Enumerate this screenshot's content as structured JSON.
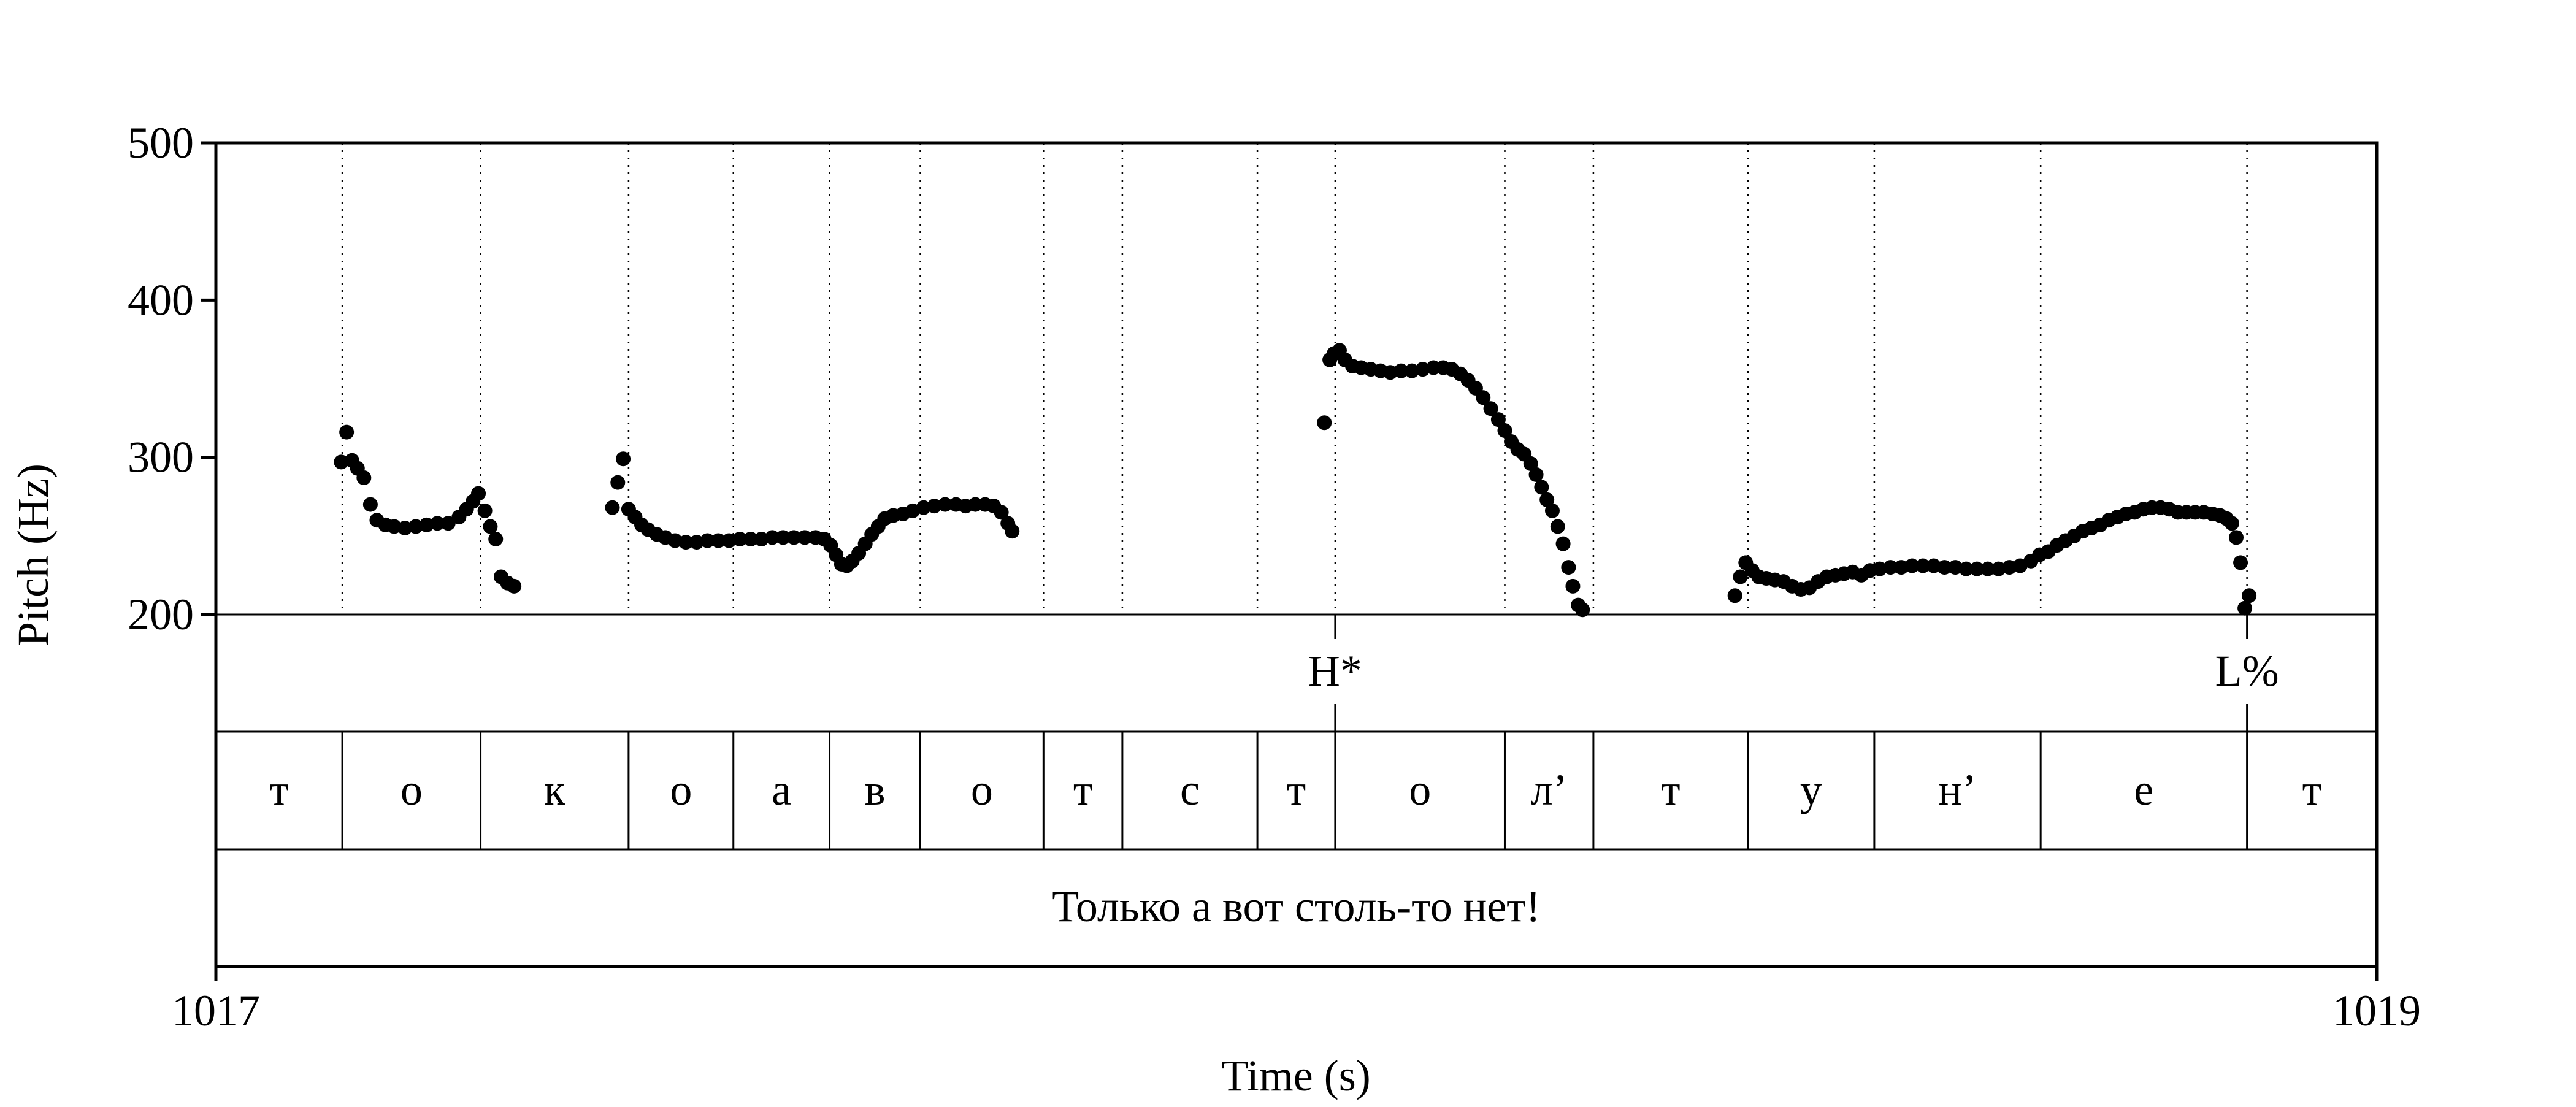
{
  "chart_data": {
    "type": "scatter",
    "xlabel": "Time (s)",
    "ylabel": "Pitch (Hz)",
    "xlim": [
      1017,
      1019
    ],
    "ylim": [
      200,
      500
    ],
    "x_ticks": [
      "1017",
      "1019"
    ],
    "y_ticks": [
      "200",
      "300",
      "400",
      "500"
    ],
    "grid": false,
    "boundaries": [
      1017.117,
      1017.245,
      1017.382,
      1017.479,
      1017.568,
      1017.652,
      1017.766,
      1017.839,
      1017.964,
      1018.036,
      1018.193,
      1018.275,
      1018.418,
      1018.535,
      1018.689,
      1018.88
    ],
    "segments": [
      "т",
      "о",
      "к",
      "о",
      "а",
      "в",
      "о",
      "т",
      "с",
      "т",
      "о",
      "л’",
      "т",
      "у",
      "н’",
      "е",
      "т"
    ],
    "tones": [
      {
        "label": "H*",
        "time": 1018.036
      },
      {
        "label": "L%",
        "time": 1018.88
      }
    ],
    "sentence": "Только а вот столь-то нет!",
    "series": [
      {
        "color": "#000000",
        "points": [
          [
            1017.116,
            297
          ],
          [
            1017.121,
            316
          ],
          [
            1017.126,
            298
          ],
          [
            1017.131,
            293
          ],
          [
            1017.137,
            287
          ],
          [
            1017.143,
            270
          ],
          [
            1017.149,
            260
          ],
          [
            1017.157,
            257
          ],
          [
            1017.165,
            256
          ],
          [
            1017.175,
            255
          ],
          [
            1017.185,
            256
          ],
          [
            1017.195,
            257
          ],
          [
            1017.205,
            258
          ],
          [
            1017.215,
            258
          ],
          [
            1017.225,
            262
          ],
          [
            1017.232,
            267
          ],
          [
            1017.238,
            272
          ],
          [
            1017.243,
            277
          ],
          [
            1017.249,
            266
          ],
          [
            1017.254,
            256
          ],
          [
            1017.259,
            248
          ],
          [
            1017.264,
            224
          ],
          [
            1017.27,
            220
          ],
          [
            1017.276,
            218
          ],
          [
            1017.367,
            268
          ],
          [
            1017.372,
            284
          ],
          [
            1017.377,
            299
          ],
          [
            1017.382,
            267
          ],
          [
            1017.388,
            262
          ],
          [
            1017.394,
            257
          ],
          [
            1017.4,
            254
          ],
          [
            1017.408,
            251
          ],
          [
            1017.416,
            249
          ],
          [
            1017.425,
            247
          ],
          [
            1017.435,
            246
          ],
          [
            1017.445,
            246
          ],
          [
            1017.455,
            247
          ],
          [
            1017.465,
            247
          ],
          [
            1017.475,
            247
          ],
          [
            1017.485,
            248
          ],
          [
            1017.495,
            248
          ],
          [
            1017.505,
            248
          ],
          [
            1017.515,
            249
          ],
          [
            1017.525,
            249
          ],
          [
            1017.535,
            249
          ],
          [
            1017.545,
            249
          ],
          [
            1017.555,
            249
          ],
          [
            1017.563,
            248
          ],
          [
            1017.569,
            244
          ],
          [
            1017.574,
            238
          ],
          [
            1017.579,
            232
          ],
          [
            1017.584,
            231
          ],
          [
            1017.589,
            234
          ],
          [
            1017.595,
            239
          ],
          [
            1017.601,
            245
          ],
          [
            1017.607,
            251
          ],
          [
            1017.613,
            256
          ],
          [
            1017.619,
            261
          ],
          [
            1017.627,
            263
          ],
          [
            1017.636,
            264
          ],
          [
            1017.645,
            266
          ],
          [
            1017.655,
            268
          ],
          [
            1017.665,
            269
          ],
          [
            1017.675,
            270
          ],
          [
            1017.685,
            270
          ],
          [
            1017.694,
            269
          ],
          [
            1017.703,
            270
          ],
          [
            1017.712,
            270
          ],
          [
            1017.72,
            269
          ],
          [
            1017.727,
            265
          ],
          [
            1017.733,
            258
          ],
          [
            1017.737,
            253
          ],
          [
            1018.026,
            322
          ],
          [
            1018.031,
            362
          ],
          [
            1018.035,
            366
          ],
          [
            1018.04,
            368
          ],
          [
            1018.045,
            362
          ],
          [
            1018.052,
            358
          ],
          [
            1018.06,
            357
          ],
          [
            1018.069,
            356
          ],
          [
            1018.078,
            355
          ],
          [
            1018.087,
            354
          ],
          [
            1018.097,
            355
          ],
          [
            1018.107,
            355
          ],
          [
            1018.117,
            356
          ],
          [
            1018.127,
            357
          ],
          [
            1018.136,
            357
          ],
          [
            1018.144,
            356
          ],
          [
            1018.152,
            353
          ],
          [
            1018.159,
            349
          ],
          [
            1018.166,
            344
          ],
          [
            1018.173,
            338
          ],
          [
            1018.18,
            331
          ],
          [
            1018.187,
            324
          ],
          [
            1018.193,
            317
          ],
          [
            1018.199,
            310
          ],
          [
            1018.205,
            305
          ],
          [
            1018.211,
            302
          ],
          [
            1018.217,
            296
          ],
          [
            1018.222,
            289
          ],
          [
            1018.227,
            281
          ],
          [
            1018.232,
            273
          ],
          [
            1018.237,
            266
          ],
          [
            1018.242,
            256
          ],
          [
            1018.247,
            245
          ],
          [
            1018.252,
            230
          ],
          [
            1018.256,
            218
          ],
          [
            1018.261,
            206
          ],
          [
            1018.265,
            203
          ],
          [
            1018.406,
            212
          ],
          [
            1018.411,
            224
          ],
          [
            1018.416,
            233
          ],
          [
            1018.422,
            228
          ],
          [
            1018.428,
            224
          ],
          [
            1018.435,
            223
          ],
          [
            1018.443,
            222
          ],
          [
            1018.451,
            221
          ],
          [
            1018.459,
            218
          ],
          [
            1018.467,
            216
          ],
          [
            1018.475,
            217
          ],
          [
            1018.483,
            221
          ],
          [
            1018.491,
            224
          ],
          [
            1018.499,
            225
          ],
          [
            1018.507,
            226
          ],
          [
            1018.515,
            227
          ],
          [
            1018.523,
            225
          ],
          [
            1018.531,
            228
          ],
          [
            1018.54,
            229
          ],
          [
            1018.55,
            230
          ],
          [
            1018.56,
            230
          ],
          [
            1018.57,
            231
          ],
          [
            1018.58,
            231
          ],
          [
            1018.59,
            231
          ],
          [
            1018.6,
            230
          ],
          [
            1018.61,
            230
          ],
          [
            1018.62,
            229
          ],
          [
            1018.63,
            229
          ],
          [
            1018.64,
            229
          ],
          [
            1018.65,
            229
          ],
          [
            1018.66,
            230
          ],
          [
            1018.67,
            231
          ],
          [
            1018.68,
            234
          ],
          [
            1018.688,
            238
          ],
          [
            1018.696,
            240
          ],
          [
            1018.704,
            244
          ],
          [
            1018.712,
            247
          ],
          [
            1018.72,
            250
          ],
          [
            1018.728,
            253
          ],
          [
            1018.736,
            255
          ],
          [
            1018.744,
            257
          ],
          [
            1018.752,
            260
          ],
          [
            1018.76,
            262
          ],
          [
            1018.768,
            264
          ],
          [
            1018.776,
            265
          ],
          [
            1018.784,
            267
          ],
          [
            1018.792,
            268
          ],
          [
            1018.8,
            268
          ],
          [
            1018.808,
            267
          ],
          [
            1018.816,
            265
          ],
          [
            1018.824,
            265
          ],
          [
            1018.832,
            265
          ],
          [
            1018.84,
            265
          ],
          [
            1018.848,
            264
          ],
          [
            1018.855,
            263
          ],
          [
            1018.861,
            261
          ],
          [
            1018.866,
            258
          ],
          [
            1018.87,
            249
          ],
          [
            1018.874,
            233
          ],
          [
            1018.878,
            204
          ],
          [
            1018.882,
            212
          ]
        ]
      }
    ]
  }
}
